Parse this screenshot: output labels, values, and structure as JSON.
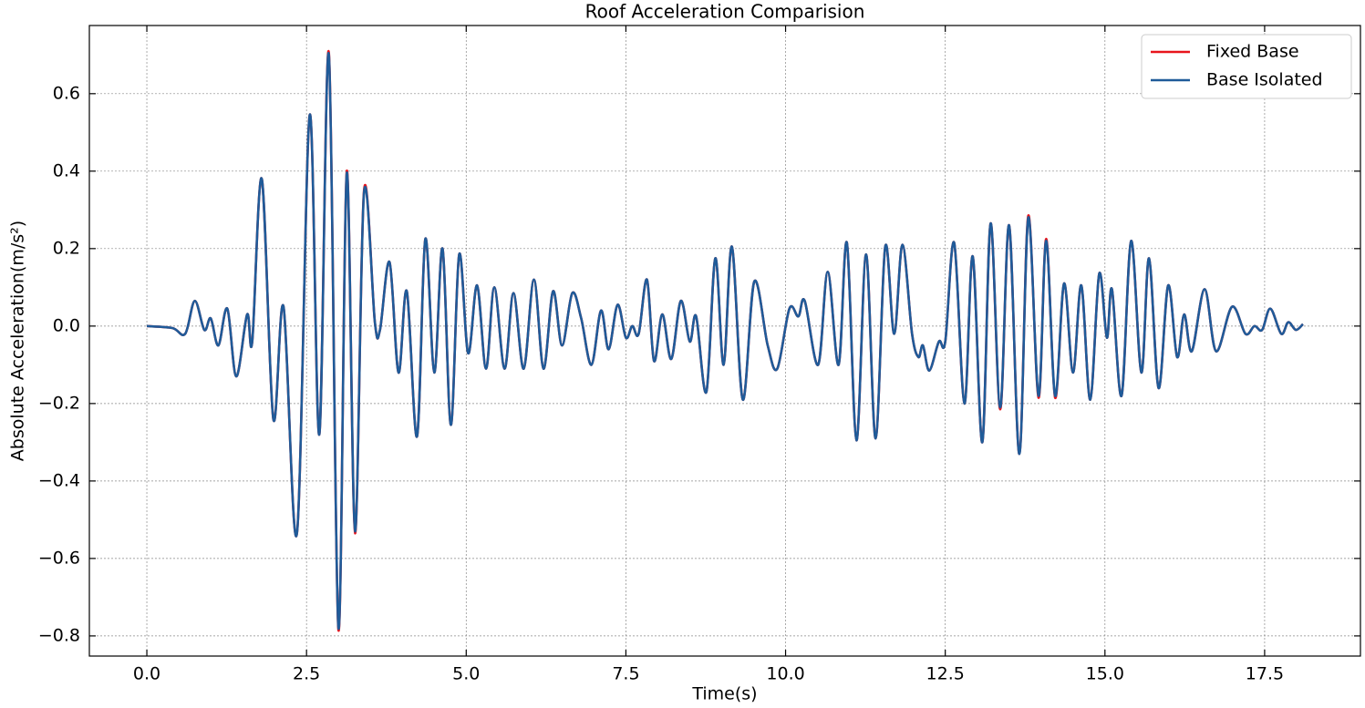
{
  "chart_data": {
    "type": "line",
    "title": "Roof Acceleration Comparision",
    "x_label": "Time(s)",
    "y_label": "Absolute Acceleration(m/s²)",
    "x": [
      0,
      0.4,
      0.6,
      0.75,
      0.9,
      1.0,
      1.12,
      1.26,
      1.4,
      1.57,
      1.65,
      1.8,
      1.98,
      2.14,
      2.35,
      2.55,
      2.7,
      2.85,
      3.0,
      3.13,
      3.26,
      3.4,
      3.57,
      3.65,
      3.8,
      3.94,
      4.07,
      4.23,
      4.36,
      4.5,
      4.63,
      4.76,
      4.89,
      5.03,
      5.17,
      5.31,
      5.44,
      5.6,
      5.74,
      5.9,
      6.06,
      6.21,
      6.36,
      6.5,
      6.66,
      6.8,
      6.96,
      7.11,
      7.23,
      7.37,
      7.5,
      7.6,
      7.7,
      7.83,
      7.94,
      8.07,
      8.21,
      8.36,
      8.5,
      8.6,
      8.76,
      8.9,
      9.03,
      9.16,
      9.33,
      9.51,
      9.72,
      9.87,
      10.06,
      10.2,
      10.3,
      10.51,
      10.66,
      10.83,
      10.96,
      11.11,
      11.26,
      11.41,
      11.56,
      11.7,
      11.83,
      11.98,
      12.08,
      12.15,
      12.25,
      12.4,
      12.5,
      12.64,
      12.8,
      12.93,
      13.08,
      13.21,
      13.36,
      13.5,
      13.66,
      13.8,
      13.96,
      14.08,
      14.22,
      14.36,
      14.5,
      14.63,
      14.77,
      14.91,
      15.03,
      15.11,
      15.26,
      15.41,
      15.57,
      15.69,
      15.84,
      15.99,
      16.13,
      16.24,
      16.36,
      16.56,
      16.74,
      16.99,
      17.2,
      17.34,
      17.46,
      17.59,
      17.76,
      17.87,
      17.99,
      18.1
    ],
    "series": [
      {
        "name": "Fixed Base",
        "color": "#e8141c",
        "values": [
          0,
          -0.005,
          -0.02,
          0.065,
          -0.01,
          0.02,
          -0.05,
          0.045,
          -0.13,
          0.03,
          -0.04,
          0.38,
          -0.24,
          0.05,
          -0.535,
          0.545,
          -0.28,
          0.705,
          -0.785,
          0.4,
          -0.535,
          0.35,
          0.01,
          -0.01,
          0.165,
          -0.12,
          0.09,
          -0.285,
          0.225,
          -0.12,
          0.2,
          -0.255,
          0.185,
          -0.07,
          0.105,
          -0.11,
          0.1,
          -0.11,
          0.085,
          -0.11,
          0.12,
          -0.11,
          0.09,
          -0.05,
          0.085,
          0.02,
          -0.1,
          0.04,
          -0.06,
          0.055,
          -0.03,
          0.0,
          -0.02,
          0.12,
          -0.09,
          0.03,
          -0.085,
          0.065,
          -0.04,
          0.025,
          -0.17,
          0.175,
          -0.1,
          0.205,
          -0.19,
          0.115,
          -0.05,
          -0.11,
          0.045,
          0.025,
          0.065,
          -0.1,
          0.14,
          -0.1,
          0.215,
          -0.295,
          0.185,
          -0.29,
          0.205,
          -0.02,
          0.21,
          -0.02,
          -0.08,
          -0.05,
          -0.115,
          -0.04,
          -0.04,
          0.215,
          -0.2,
          0.18,
          -0.3,
          0.265,
          -0.215,
          0.26,
          -0.33,
          0.285,
          -0.185,
          0.225,
          -0.185,
          0.11,
          -0.12,
          0.105,
          -0.19,
          0.135,
          -0.03,
          0.095,
          -0.18,
          0.22,
          -0.12,
          0.175,
          -0.16,
          0.105,
          -0.08,
          0.03,
          -0.065,
          0.095,
          -0.065,
          0.05,
          -0.02,
          0.0,
          -0.01,
          0.045,
          -0.02,
          0.01,
          -0.01,
          0.005
        ]
      },
      {
        "name": "Base Isolated",
        "color": "#1f5b99",
        "values": [
          0,
          -0.005,
          -0.02,
          0.065,
          -0.01,
          0.02,
          -0.05,
          0.045,
          -0.13,
          0.03,
          -0.04,
          0.38,
          -0.24,
          0.05,
          -0.535,
          0.545,
          -0.28,
          0.7,
          -0.78,
          0.395,
          -0.53,
          0.345,
          0.01,
          -0.01,
          0.165,
          -0.12,
          0.09,
          -0.285,
          0.225,
          -0.12,
          0.2,
          -0.255,
          0.185,
          -0.07,
          0.105,
          -0.11,
          0.1,
          -0.11,
          0.085,
          -0.11,
          0.12,
          -0.11,
          0.09,
          -0.05,
          0.085,
          0.02,
          -0.1,
          0.04,
          -0.06,
          0.055,
          -0.03,
          0.0,
          -0.02,
          0.12,
          -0.09,
          0.03,
          -0.085,
          0.065,
          -0.04,
          0.025,
          -0.17,
          0.175,
          -0.1,
          0.205,
          -0.19,
          0.115,
          -0.05,
          -0.11,
          0.045,
          0.025,
          0.065,
          -0.1,
          0.14,
          -0.1,
          0.215,
          -0.295,
          0.185,
          -0.29,
          0.205,
          -0.02,
          0.21,
          -0.02,
          -0.08,
          -0.05,
          -0.115,
          -0.04,
          -0.04,
          0.215,
          -0.2,
          0.18,
          -0.3,
          0.265,
          -0.21,
          0.26,
          -0.33,
          0.28,
          -0.18,
          0.22,
          -0.18,
          0.11,
          -0.12,
          0.105,
          -0.19,
          0.135,
          -0.03,
          0.095,
          -0.18,
          0.22,
          -0.12,
          0.175,
          -0.16,
          0.105,
          -0.08,
          0.03,
          -0.065,
          0.095,
          -0.065,
          0.05,
          -0.02,
          0.0,
          -0.01,
          0.045,
          -0.02,
          0.01,
          -0.01,
          0.005
        ]
      }
    ],
    "xlim": [
      -0.9,
      19.0
    ],
    "ylim": [
      -0.852,
      0.776
    ],
    "xticks": [
      {
        "value": 0,
        "label": "0.0"
      },
      2.5,
      {
        "value": 5,
        "label": "5.0"
      },
      7.5,
      {
        "value": 10,
        "label": "10.0"
      },
      12.5,
      {
        "value": 15,
        "label": "15.0"
      },
      17.5
    ],
    "yticks": [
      {
        "value": -0.8,
        "label": "−0.8"
      },
      {
        "value": -0.6,
        "label": "−0.6"
      },
      {
        "value": -0.4,
        "label": "−0.4"
      },
      {
        "value": -0.2,
        "label": "−0.2"
      },
      {
        "value": 0,
        "label": "0.0"
      },
      0.2,
      0.4,
      0.6
    ],
    "grid": true,
    "legend": "upper right"
  }
}
